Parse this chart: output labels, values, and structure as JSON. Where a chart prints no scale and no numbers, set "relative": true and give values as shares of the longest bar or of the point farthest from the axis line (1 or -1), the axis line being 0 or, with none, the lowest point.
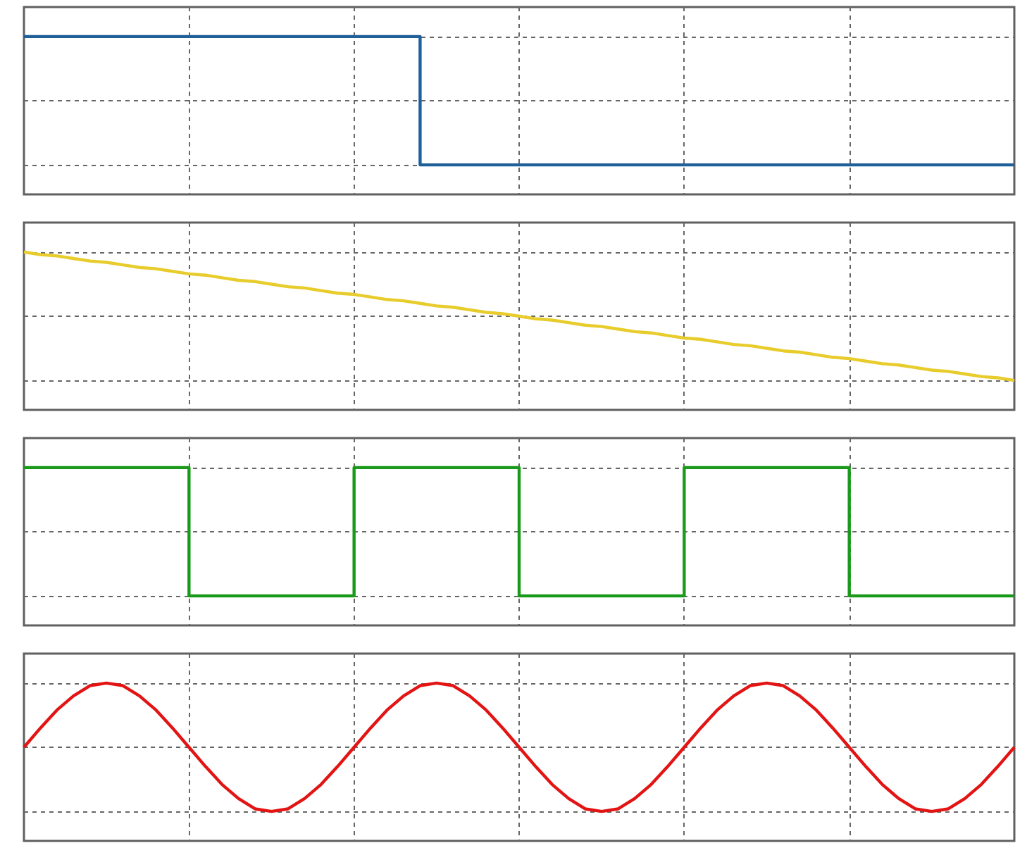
{
  "chart_data": [
    {
      "type": "step",
      "relative": true,
      "grid": true,
      "marker": "none",
      "categories": [
        null,
        null,
        null,
        null,
        null,
        null,
        null,
        null,
        null,
        null,
        null,
        null,
        null,
        null,
        null,
        null,
        null,
        null,
        null,
        null,
        null,
        null,
        null,
        null,
        null,
        null,
        null,
        null,
        null,
        null,
        null,
        null,
        null,
        null,
        null,
        null,
        null,
        null,
        null,
        null,
        null,
        null,
        null,
        null,
        null,
        null,
        null,
        null,
        null,
        null,
        null,
        null,
        null,
        null,
        null,
        null,
        null,
        null,
        null,
        null,
        null
      ],
      "series": [
        {
          "color": "#1f5f9a",
          "values": [
            1,
            1,
            1,
            1,
            1,
            1,
            1,
            1,
            1,
            1,
            1,
            1,
            1,
            1,
            1,
            1,
            1,
            1,
            1,
            1,
            1,
            1,
            1,
            1,
            0,
            0,
            0,
            0,
            0,
            0,
            0,
            0,
            0,
            0,
            0,
            0,
            0,
            0,
            0,
            0,
            0,
            0,
            0,
            0,
            0,
            0,
            0,
            0,
            0,
            0,
            0,
            0,
            0,
            0,
            0,
            0,
            0,
            0,
            0,
            0,
            0
          ]
        }
      ]
    },
    {
      "type": "line",
      "relative": true,
      "grid": true,
      "marker": "none",
      "categories": [
        null,
        null,
        null,
        null,
        null,
        null,
        null,
        null,
        null,
        null,
        null,
        null,
        null,
        null,
        null,
        null,
        null,
        null,
        null,
        null,
        null,
        null,
        null,
        null,
        null,
        null,
        null,
        null,
        null,
        null,
        null,
        null,
        null,
        null,
        null,
        null,
        null,
        null,
        null,
        null,
        null,
        null,
        null,
        null,
        null,
        null,
        null,
        null,
        null,
        null,
        null,
        null,
        null,
        null,
        null,
        null,
        null,
        null,
        null,
        null,
        null
      ],
      "series": [
        {
          "color": "#e8cc2c",
          "values": [
            1,
            0.98,
            0.97,
            0.95,
            0.93,
            0.92,
            0.9,
            0.88,
            0.87,
            0.85,
            0.83,
            0.82,
            0.8,
            0.78,
            0.77,
            0.75,
            0.73,
            0.72,
            0.7,
            0.68,
            0.67,
            0.65,
            0.63,
            0.62,
            0.6,
            0.58,
            0.57,
            0.55,
            0.53,
            0.52,
            0.5,
            0.48,
            0.47,
            0.45,
            0.43,
            0.42,
            0.4,
            0.38,
            0.37,
            0.35,
            0.33,
            0.32,
            0.3,
            0.28,
            0.27,
            0.25,
            0.23,
            0.22,
            0.2,
            0.18,
            0.17,
            0.15,
            0.13,
            0.12,
            0.1,
            0.08,
            0.07,
            0.05,
            0.03,
            0.02,
            0
          ]
        }
      ]
    },
    {
      "type": "step",
      "relative": true,
      "grid": true,
      "marker": "none",
      "categories": [
        null,
        null,
        null,
        null,
        null,
        null,
        null,
        null,
        null,
        null,
        null,
        null,
        null,
        null,
        null,
        null,
        null,
        null,
        null,
        null,
        null,
        null,
        null,
        null,
        null,
        null,
        null,
        null,
        null,
        null,
        null,
        null,
        null,
        null,
        null,
        null,
        null,
        null,
        null,
        null,
        null,
        null,
        null,
        null,
        null,
        null,
        null,
        null,
        null,
        null,
        null,
        null,
        null,
        null,
        null,
        null,
        null,
        null,
        null,
        null,
        null
      ],
      "series": [
        {
          "color": "#1a9a1a",
          "values": [
            1,
            1,
            1,
            1,
            1,
            1,
            1,
            1,
            1,
            1,
            0,
            0,
            0,
            0,
            0,
            0,
            0,
            0,
            0,
            0,
            1,
            1,
            1,
            1,
            1,
            1,
            1,
            1,
            1,
            1,
            0,
            0,
            0,
            0,
            0,
            0,
            0,
            0,
            0,
            0,
            1,
            1,
            1,
            1,
            1,
            1,
            1,
            1,
            1,
            1,
            0,
            0,
            0,
            0,
            0,
            0,
            0,
            0,
            0,
            0,
            0
          ]
        }
      ]
    },
    {
      "type": "line",
      "relative": true,
      "grid": true,
      "marker": "none",
      "categories": [
        null,
        null,
        null,
        null,
        null,
        null,
        null,
        null,
        null,
        null,
        null,
        null,
        null,
        null,
        null,
        null,
        null,
        null,
        null,
        null,
        null,
        null,
        null,
        null,
        null,
        null,
        null,
        null,
        null,
        null,
        null,
        null,
        null,
        null,
        null,
        null,
        null,
        null,
        null,
        null,
        null,
        null,
        null,
        null,
        null,
        null,
        null,
        null,
        null,
        null,
        null,
        null,
        null,
        null,
        null,
        null,
        null,
        null,
        null,
        null,
        null
      ],
      "series": [
        {
          "color": "#e21414",
          "values": [
            0.5,
            0.65,
            0.79,
            0.9,
            0.98,
            1,
            0.98,
            0.9,
            0.79,
            0.65,
            0.5,
            0.35,
            0.21,
            0.1,
            0.02,
            0,
            0.02,
            0.1,
            0.21,
            0.35,
            0.5,
            0.65,
            0.79,
            0.9,
            0.98,
            1,
            0.98,
            0.9,
            0.79,
            0.65,
            0.5,
            0.35,
            0.21,
            0.1,
            0.02,
            0,
            0.02,
            0.1,
            0.21,
            0.35,
            0.5,
            0.65,
            0.79,
            0.9,
            0.98,
            1,
            0.98,
            0.9,
            0.79,
            0.65,
            0.5,
            0.35,
            0.21,
            0.1,
            0.02,
            0,
            0.02,
            0.1,
            0.21,
            0.35,
            0.5
          ]
        }
      ]
    }
  ]
}
